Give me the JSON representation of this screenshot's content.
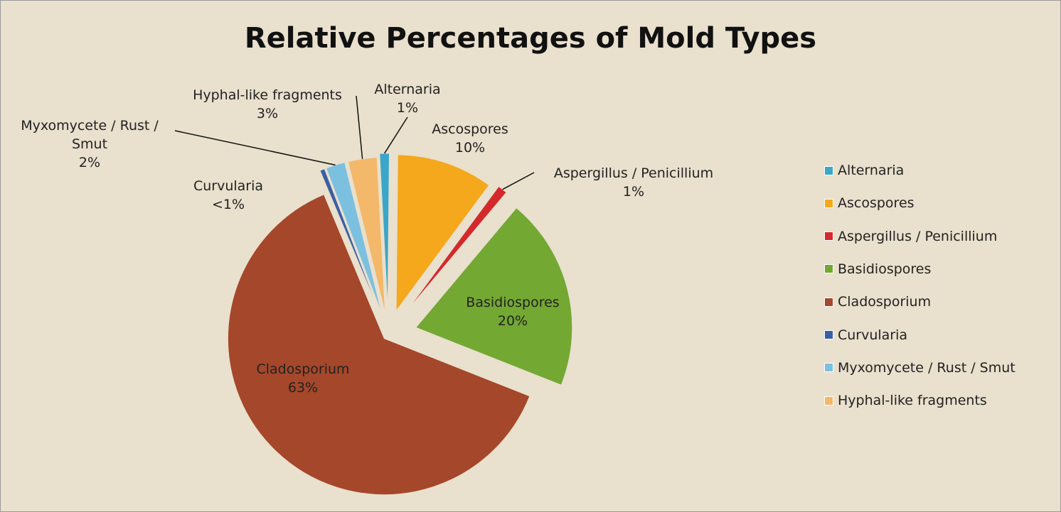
{
  "chart_data": {
    "type": "pie",
    "title": "Relative Percentages of Mold Types",
    "categories": [
      "Alternaria",
      "Ascospores",
      "Aspergillus / Penicillium",
      "Basidiospores",
      "Cladosporium",
      "Curvularia",
      "Myxomycete / Rust / Smut",
      "Hyphal-like fragments"
    ],
    "values": [
      1,
      10,
      1,
      20,
      63,
      0.5,
      2,
      3
    ],
    "value_labels": [
      "1%",
      "10%",
      "1%",
      "20%",
      "63%",
      "<1%",
      "2%",
      "3%"
    ],
    "colors": [
      "#3aa6c8",
      "#f5a81c",
      "#d3292b",
      "#73a833",
      "#a5472a",
      "#3b5fa3",
      "#7cc0e0",
      "#f3b86a"
    ],
    "legend": "right"
  }
}
